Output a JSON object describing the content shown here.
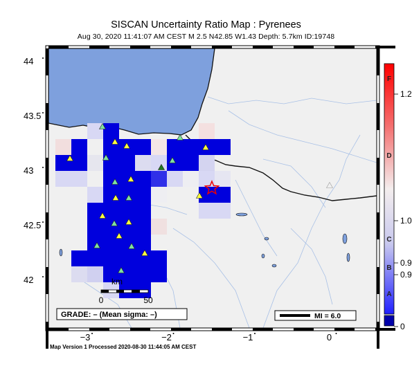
{
  "title": "SISCAN Uncertainty Ratio Map : Pyrenees",
  "subtitle": "Aug 30, 2020 11:41:07 AM CEST   M 2.5   N42.85 W1.43   Depth: 5.7km   ID:19748",
  "footer": "Map Version 1 Processed 2020-08-30 11:44:05 AM CEST",
  "lat_ticks": [
    {
      "label": "44",
      "value": 44.0
    },
    {
      "label": "43.5",
      "value": 43.5
    },
    {
      "label": "43",
      "value": 43.0
    },
    {
      "label": "42.5",
      "value": 42.5
    },
    {
      "label": "42",
      "value": 42.0
    }
  ],
  "lon_ticks": [
    {
      "label": "−3",
      "value": -3
    },
    {
      "label": "−2",
      "value": -2
    },
    {
      "label": "−1",
      "value": -1
    },
    {
      "label": "0",
      "value": 0
    }
  ],
  "scale_bar": {
    "unit": "km",
    "tick_0": "0",
    "tick_50": "50"
  },
  "grade_text": "GRADE: – (Mean sigma: –)",
  "mi_text": "MI = 6.0",
  "color_scale": {
    "grade_letters": [
      "F",
      "D",
      "C",
      "B",
      "A"
    ],
    "value_labels": [
      "1.2",
      "1.0",
      "0.9",
      "0.9",
      "0"
    ]
  },
  "epicenter": {
    "lat": 42.85,
    "lon": -1.43
  },
  "colors": {
    "sea": "#7ea0dd",
    "land": "#f0f0f0",
    "grid_strong": "#0000dd",
    "epicenter": "#ee0000"
  }
}
